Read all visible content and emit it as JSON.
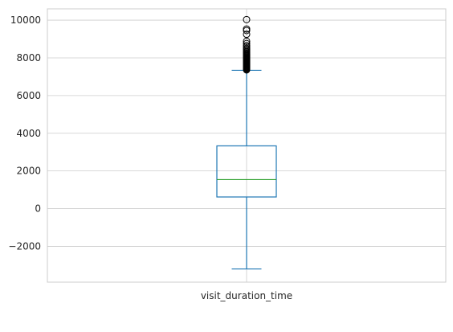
{
  "chart_data": {
    "type": "box",
    "title": "",
    "xlabel": "",
    "ylabel": "",
    "grid": true,
    "categories": [
      "visit_duration_time"
    ],
    "ylim": [
      -3900,
      10600
    ],
    "yticks": [
      -2000,
      0,
      2000,
      4000,
      6000,
      8000,
      10000
    ],
    "boxes": [
      {
        "category": "visit_duration_time",
        "whisker_low": -3200,
        "q1": 620,
        "median": 1540,
        "q3": 3330,
        "whisker_high": 7340,
        "outliers": [
          7360,
          7400,
          7430,
          7460,
          7490,
          7520,
          7550,
          7580,
          7610,
          7640,
          7670,
          7700,
          7730,
          7760,
          7790,
          7820,
          7850,
          7880,
          7910,
          7940,
          7970,
          8000,
          8030,
          8060,
          8100,
          8140,
          8180,
          8220,
          8270,
          8320,
          8380,
          8440,
          8500,
          8580,
          8660,
          8760,
          8880,
          9250,
          9450,
          9530,
          10030
        ]
      }
    ],
    "colors": {
      "box": "#1f77b4",
      "median": "#2ca02c",
      "grid": "#cccccc",
      "spine": "#cccccc",
      "outlier_edge": "#000000"
    }
  }
}
